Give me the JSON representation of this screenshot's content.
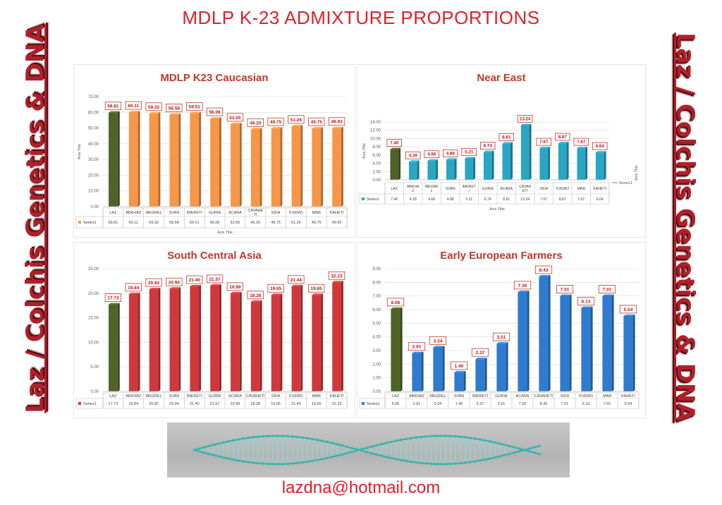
{
  "main_title": "MDLP K-23 ADMIXTURE PROPORTIONS",
  "side_text": "Laz / Colchis Genetics & DNA",
  "email": "lazdna@hotmail.com",
  "colors": {
    "title": "#e0202a",
    "first_bar": "#4f6228",
    "caucasian": "#f79646",
    "near_east": "#2aa6c4",
    "south_central_asia": "#d0383c",
    "early_european_farmers": "#2f7bd0",
    "label_border": "#c0392b"
  },
  "chart_data": [
    {
      "type": "bar",
      "title": "MDLP K23 Caucasian",
      "categories": [
        "LAZ",
        "ABKHAZ",
        "MEGREL",
        "SVAN",
        "IMERETI",
        "GURIA",
        "ACARA",
        "CAVAHETI",
        "SIDA",
        "KVEMO",
        "MtMt",
        "KAHETI"
      ],
      "category_labels": [
        "LAZ",
        "ABKHAZ",
        "MEGREL",
        "SVAN",
        "IMERETI",
        "GURIA",
        "ACARA",
        "CAVAHE\nTI",
        "SIDA",
        "KVEMO",
        "MtMt",
        "KAHETI"
      ],
      "series": [
        {
          "name": "Series1",
          "values": [
            59.81,
            60.11,
            59.32,
            58.58,
            59.51,
            56.06,
            52.55,
            49.2,
            49.75,
            51.26,
            49.75,
            49.93
          ]
        }
      ],
      "data_labels": [
        "59.81",
        "60.11",
        "59.32",
        "58.58",
        "59.51",
        "56.06",
        "52.55",
        "49.20",
        "49.75",
        "51.26",
        "49.75",
        "49.93"
      ],
      "ylim": [
        0,
        70
      ],
      "yticks": [
        "0.00",
        "10.00",
        "20.00",
        "30.00",
        "40.00",
        "50.00",
        "60.00",
        "70.00"
      ],
      "ylabel": "Axis Title",
      "xlabel": "Axis Title",
      "table": true,
      "grid": true
    },
    {
      "type": "bar",
      "title": "Near East",
      "categories": [
        "LAZ",
        "ABKHAZ",
        "MEGREL",
        "SVAN",
        "IMERETI",
        "GURIA",
        "ACARA",
        "CAVAHETI",
        "SIDA",
        "KVEMO",
        "MtMt",
        "KAHETI"
      ],
      "category_labels": [
        "LAZ",
        "ABKHA\nZ",
        "MEGRE\nL",
        "SVAN",
        "IMERET\nI",
        "GURIA",
        "ACARA",
        "CAVAH\nETI",
        "SIDA",
        "KVEMO",
        "MtMt",
        "KAHETI"
      ],
      "series": [
        {
          "name": "Series1",
          "values": [
            7.4,
            4.39,
            4.66,
            4.88,
            5.21,
            6.74,
            8.81,
            13.24,
            7.67,
            8.87,
            7.67,
            6.64
          ]
        }
      ],
      "data_labels": [
        "7.40",
        "4.39",
        "4.66",
        "4.88",
        "5.21",
        "6.74",
        "8.81",
        "13.24",
        "7.67",
        "8.87",
        "7.67",
        "6.64"
      ],
      "ylim": [
        0,
        14
      ],
      "yticks": [
        "0.00",
        "2.00",
        "4.00",
        "6.00",
        "8.00",
        "10.00",
        "12.00",
        "14.00"
      ],
      "ylabel": "Axis Title",
      "xlabel": "Axis Title",
      "legend_right": "Series1",
      "right_axis_label": "Axis Title",
      "table": true,
      "grid": true
    },
    {
      "type": "bar",
      "title": "South Central Asia",
      "categories": [
        "LAZ",
        "ABKHAZ",
        "MEGREL",
        "SVAN",
        "IMERETI",
        "GURIA",
        "ACARA",
        "CAVAHETI",
        "SIDA",
        "KVEMO",
        "MtMt",
        "KAHETI"
      ],
      "category_labels": [
        "LAZ",
        "ABKHAZ",
        "MEGREL",
        "SVAN",
        "IMERETI",
        "GURIA",
        "ACARA",
        "CAVAHETI",
        "SIDA",
        "KVEMO",
        "MtMt",
        "KAHETI"
      ],
      "series": [
        {
          "name": "Series1",
          "values": [
            17.73,
            19.84,
            20.82,
            20.94,
            21.4,
            21.57,
            19.99,
            18.28,
            19.65,
            21.44,
            19.65,
            22.23
          ]
        }
      ],
      "data_labels": [
        "17.73",
        "19.84",
        "20.82",
        "20.94",
        "21.40",
        "21.57",
        "19.99",
        "18.28",
        "19.65",
        "21.44",
        "19.65",
        "22.23"
      ],
      "ylim": [
        0,
        25
      ],
      "yticks": [
        "0.00",
        "5.00",
        "10.00",
        "15.00",
        "20.00",
        "25.00"
      ],
      "table": true,
      "grid": true
    },
    {
      "type": "bar",
      "title": "Early European Farmers",
      "categories": [
        "LAZ",
        "ABKHAZ",
        "MEGREL",
        "SVAN",
        "IMERETI",
        "GURIA",
        "ACARA",
        "CAVAHETI",
        "SIDA",
        "KVEMO",
        "MtMt",
        "KAHETI"
      ],
      "category_labels": [
        "LAZ",
        "ABKHAZ",
        "MEGREL",
        "SVAN",
        "IMERETI",
        "GURIA",
        "ACARA",
        "CAVAHETI",
        "SIDA",
        "KVEMO",
        "MtMt",
        "KAHETI"
      ],
      "series": [
        {
          "name": "Series1",
          "values": [
            6.06,
            2.81,
            3.24,
            1.4,
            2.37,
            3.51,
            7.3,
            8.43,
            7.01,
            6.13,
            7.01,
            5.54
          ]
        }
      ],
      "data_labels": [
        "6.06",
        "2.81",
        "3.24",
        "1.40",
        "2.37",
        "3.51",
        "7.30",
        "8.43",
        "7.01",
        "6.13",
        "7.01",
        "5.54"
      ],
      "ylim": [
        0,
        9
      ],
      "yticks": [
        "0.00",
        "1.00",
        "2.00",
        "3.00",
        "4.00",
        "5.00",
        "6.00",
        "7.00",
        "8.00",
        "9.00"
      ],
      "table": true,
      "grid": true
    }
  ]
}
